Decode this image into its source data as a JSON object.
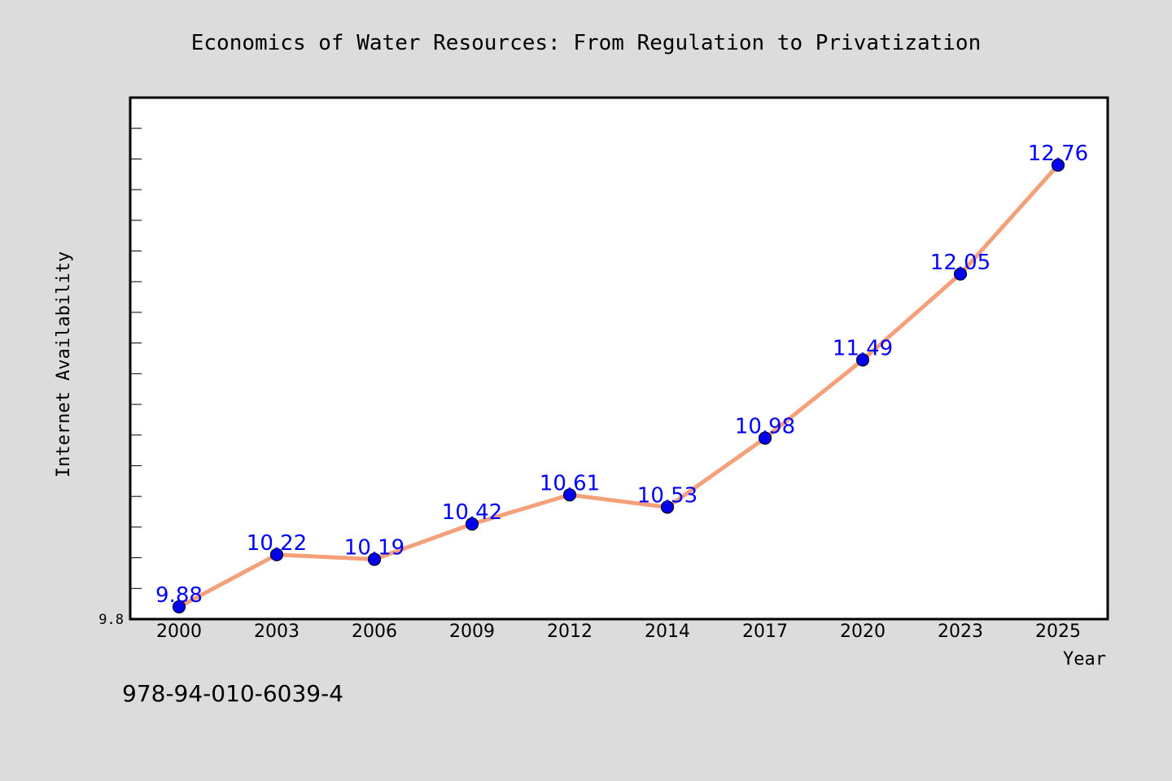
{
  "chart_data": {
    "type": "line",
    "title": "Economics of Water Resources: From Regulation to Privatization",
    "xlabel": "Year",
    "ylabel": "Internet Availability",
    "categories": [
      "2000",
      "2003",
      "2006",
      "2009",
      "2012",
      "2014",
      "2017",
      "2020",
      "2023",
      "2025"
    ],
    "series": [
      {
        "values": [
          9.88,
          10.22,
          10.19,
          10.42,
          10.61,
          10.53,
          10.98,
          11.49,
          12.05,
          12.76
        ],
        "labels": [
          "9.88",
          "10.22",
          "10.19",
          "10.42",
          "10.61",
          "10.53",
          "10.98",
          "11.49",
          "12.05",
          "12.76"
        ]
      }
    ],
    "ylim": [
      9.8,
      13.2
    ],
    "ytick_labels": [
      "9.8"
    ],
    "grid": false,
    "line_color": "#f4a07a",
    "marker_color": "#0000ee",
    "label_color": "#0000ff",
    "plot_background": "#ffffff",
    "figure_background": "#dcdcdc"
  },
  "annotation": {
    "isbn": "978-94-010-6039-4"
  }
}
